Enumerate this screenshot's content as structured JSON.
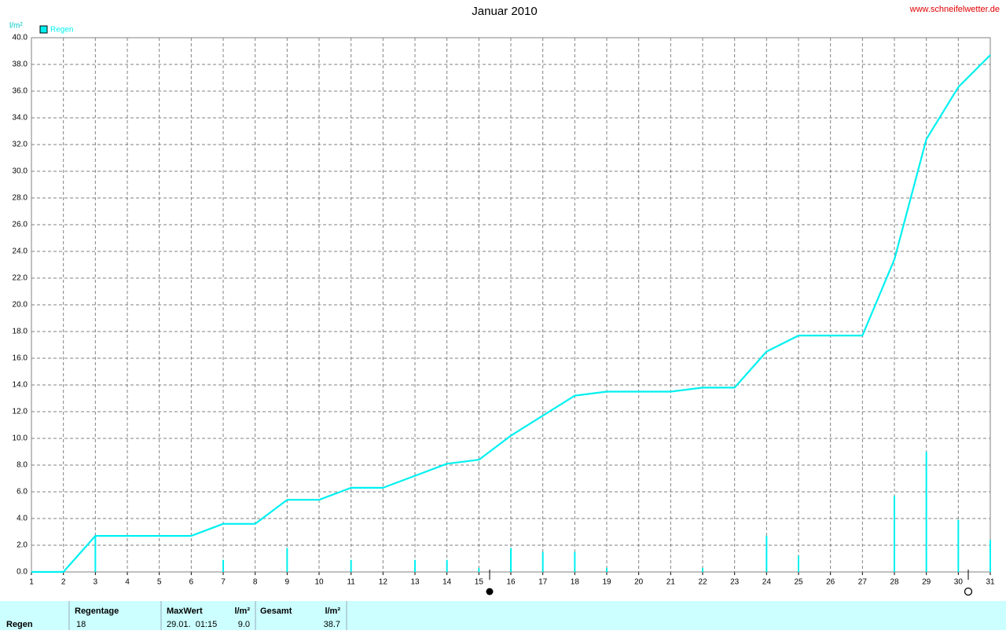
{
  "chart_data": {
    "type": "line",
    "title": "Januar 2010",
    "source": "www.schneifelwetter.de",
    "y_label": "l/m²",
    "x": [
      1,
      2,
      3,
      4,
      5,
      6,
      7,
      8,
      9,
      10,
      11,
      12,
      13,
      14,
      15,
      16,
      17,
      18,
      19,
      20,
      21,
      22,
      23,
      24,
      25,
      26,
      27,
      28,
      29,
      30,
      31
    ],
    "series": [
      {
        "name": "Regen",
        "color": "#00f0f0",
        "values": [
          0,
          0,
          2.7,
          2.7,
          2.7,
          2.7,
          3.6,
          3.6,
          5.4,
          5.4,
          6.3,
          6.3,
          7.2,
          8.1,
          8.4,
          10.2,
          11.7,
          13.2,
          13.5,
          13.5,
          13.5,
          13.8,
          13.8,
          16.5,
          17.7,
          17.7,
          17.7,
          23.4,
          32.4,
          36.3,
          38.7
        ]
      }
    ],
    "bar_values": [
      0,
      0,
      2.7,
      0,
      0,
      0,
      0.9,
      0,
      1.8,
      0,
      0.9,
      0,
      0.9,
      0.9,
      0.3,
      1.8,
      1.5,
      1.5,
      0.3,
      0,
      0,
      0.3,
      0,
      2.7,
      1.2,
      0,
      0,
      5.7,
      9.0,
      3.9,
      2.4
    ],
    "xlim": [
      1,
      31
    ],
    "xticks": [
      1,
      2,
      3,
      4,
      5,
      6,
      7,
      8,
      9,
      10,
      11,
      12,
      13,
      14,
      15,
      16,
      17,
      18,
      19,
      20,
      21,
      22,
      23,
      24,
      25,
      26,
      27,
      28,
      29,
      30,
      31
    ],
    "ylim": [
      0,
      40
    ],
    "yticks": [
      {
        "value": 0,
        "label": "0.0"
      },
      {
        "value": 2,
        "label": "2.0"
      },
      {
        "value": 4,
        "label": "4.0"
      },
      {
        "value": 6,
        "label": "6.0"
      },
      {
        "value": 8,
        "label": "8.0"
      },
      {
        "value": 10,
        "label": "10.0"
      },
      {
        "value": 12,
        "label": "12.0"
      },
      {
        "value": 14,
        "label": "14.0"
      },
      {
        "value": 16,
        "label": "16.0"
      },
      {
        "value": 18,
        "label": "18.0"
      },
      {
        "value": 20,
        "label": "20.0"
      },
      {
        "value": 22,
        "label": "22.0"
      },
      {
        "value": 24,
        "label": "24.0"
      },
      {
        "value": 26,
        "label": "26.0"
      },
      {
        "value": 28,
        "label": "28.0"
      },
      {
        "value": 30,
        "label": "30.0"
      },
      {
        "value": 32,
        "label": "32.0"
      },
      {
        "value": 34,
        "label": "34.0"
      },
      {
        "value": 36,
        "label": "36.0"
      },
      {
        "value": 38,
        "label": "38.0"
      },
      {
        "value": 40,
        "label": "40.0"
      }
    ],
    "grid": true
  },
  "summary": {
    "row_label": "Regen",
    "regentage": {
      "header": "Regentage",
      "value": "18"
    },
    "maxwert": {
      "header": "MaxWert",
      "unit": "l/m²",
      "date": "29.01.  01:15",
      "value": "9.0"
    },
    "gesamt": {
      "header": "Gesamt",
      "unit": "l/m²",
      "value": "38.7"
    }
  }
}
